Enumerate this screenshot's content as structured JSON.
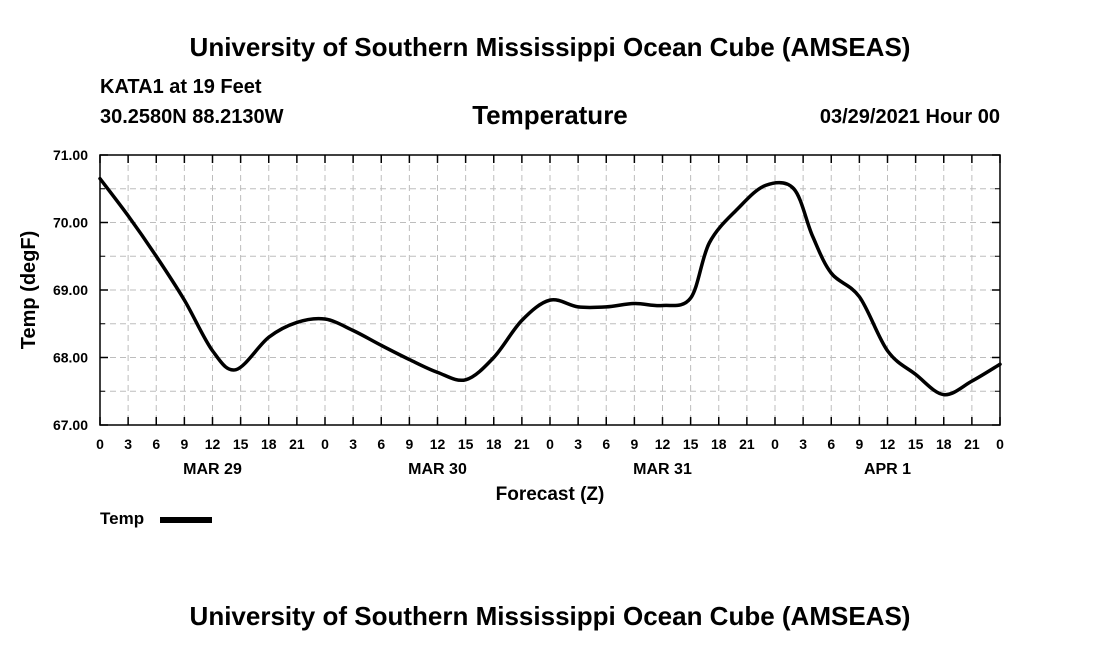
{
  "header": {
    "title_top": "University of Southern Mississippi Ocean Cube (AMSEAS)",
    "station": "KATA1 at 19 Feet",
    "coords": "30.2580N  88.2130W",
    "variable": "Temperature",
    "datetime": "03/29/2021 Hour 00"
  },
  "footer": {
    "title_bottom": "University of Southern Mississippi Ocean Cube (AMSEAS)"
  },
  "legend": {
    "label": "Temp"
  },
  "colors": {
    "line": "#000000",
    "grid": "#bdbdbd"
  },
  "chart_data": {
    "type": "line",
    "title": "Temperature",
    "xlabel": "Forecast (Z)",
    "ylabel": "Temp (degF)",
    "xlim": [
      0,
      96
    ],
    "ylim": [
      67.0,
      71.0
    ],
    "yticks": [
      "67.00",
      "68.00",
      "69.00",
      "70.00",
      "71.00"
    ],
    "xtick_labels": [
      "0",
      "3",
      "6",
      "9",
      "12",
      "15",
      "18",
      "21",
      "0",
      "3",
      "6",
      "9",
      "12",
      "15",
      "18",
      "21",
      "0",
      "3",
      "6",
      "9",
      "12",
      "15",
      "18",
      "21",
      "0",
      "3",
      "6",
      "9",
      "12",
      "15",
      "18",
      "21",
      "0"
    ],
    "day_labels": [
      {
        "label": "MAR 29",
        "hour": 12
      },
      {
        "label": "MAR 30",
        "hour": 36
      },
      {
        "label": "MAR 31",
        "hour": 60
      },
      {
        "label": "APR 1",
        "hour": 84
      }
    ],
    "grid": true,
    "legend_position": "bottom-left",
    "series": [
      {
        "name": "Temp",
        "x": [
          0,
          3,
          6,
          9,
          12,
          14.5,
          18,
          21,
          24,
          27,
          30,
          33,
          36,
          39,
          42,
          45,
          48,
          51,
          54,
          57,
          60,
          63,
          65,
          68,
          71,
          74,
          76,
          78,
          81,
          84,
          87,
          90,
          93,
          96
        ],
        "values": [
          70.65,
          70.1,
          69.5,
          68.85,
          68.1,
          67.82,
          68.3,
          68.52,
          68.57,
          68.4,
          68.18,
          67.97,
          67.78,
          67.67,
          68.0,
          68.55,
          68.85,
          68.75,
          68.75,
          68.8,
          68.77,
          68.88,
          69.7,
          70.2,
          70.55,
          70.5,
          69.8,
          69.25,
          68.9,
          68.1,
          67.75,
          67.45,
          67.65,
          67.9
        ]
      }
    ]
  }
}
